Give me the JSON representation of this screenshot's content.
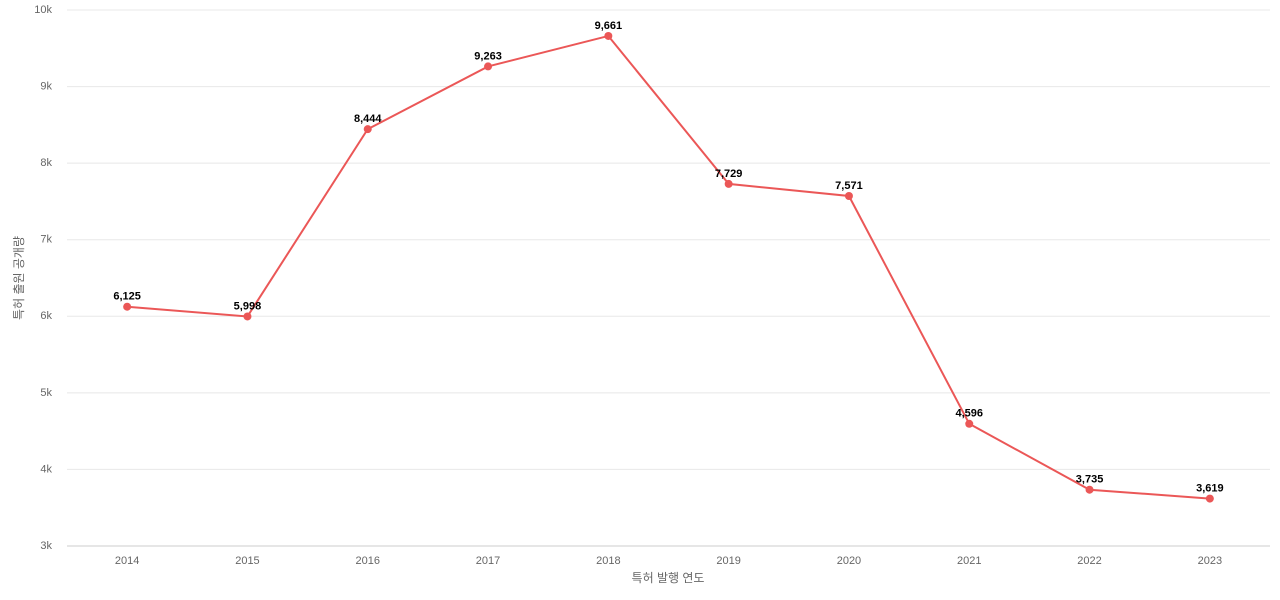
{
  "chart_data": {
    "type": "line",
    "x_label": "특허 발행 연도",
    "y_label": "특허 출원 공개량",
    "categories": [
      "2014",
      "2015",
      "2016",
      "2017",
      "2018",
      "2019",
      "2020",
      "2021",
      "2022",
      "2023"
    ],
    "values": [
      6125,
      5998,
      8444,
      9263,
      9661,
      7729,
      7571,
      4596,
      3735,
      3619
    ],
    "value_labels": [
      "6,125",
      "5,998",
      "8,444",
      "9,263",
      "9,661",
      "7,729",
      "7,571",
      "4,596",
      "3,735",
      "3,619"
    ],
    "color": "#eb5757",
    "ylim": [
      3000,
      10000
    ],
    "yticks": [
      {
        "value": 3000,
        "label": "3k"
      },
      {
        "value": 4000,
        "label": "4k"
      },
      {
        "value": 5000,
        "label": "5k"
      },
      {
        "value": 6000,
        "label": "6k"
      },
      {
        "value": 7000,
        "label": "7k"
      },
      {
        "value": 8000,
        "label": "8k"
      },
      {
        "value": 9000,
        "label": "9k"
      },
      {
        "value": 10000,
        "label": "10k"
      }
    ],
    "grid": true
  }
}
